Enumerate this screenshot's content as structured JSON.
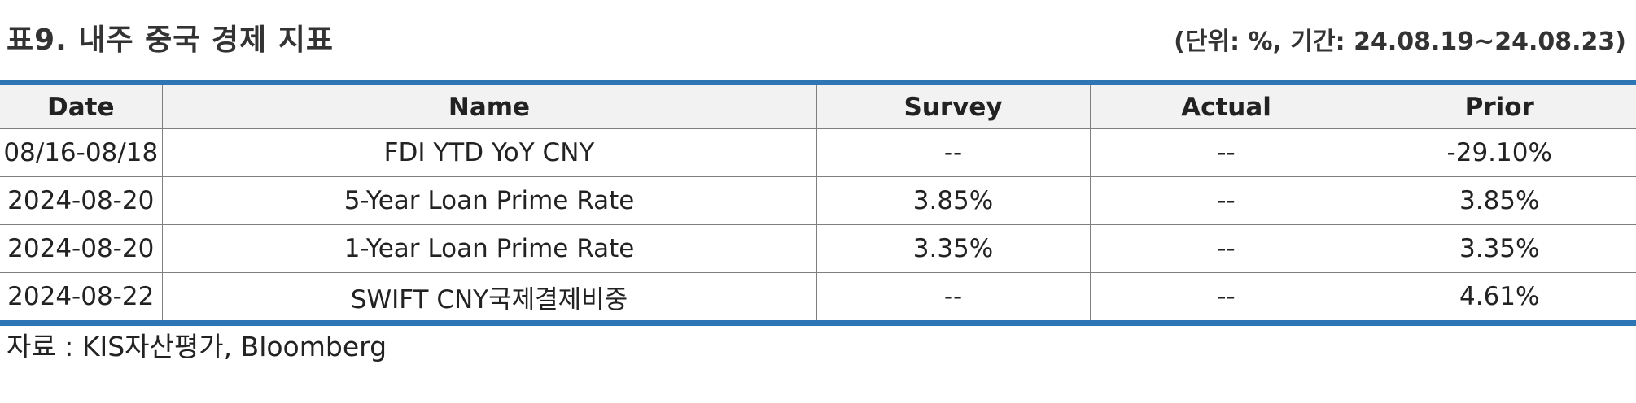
{
  "title": "표9. 내주 중국 경제 지표",
  "unit_note": "(단위: %, 기간: 24.08.19~24.08.23)",
  "table": {
    "headers": [
      "Date",
      "Name",
      "Survey",
      "Actual",
      "Prior"
    ],
    "rows": [
      [
        "08/16-08/18",
        "FDI YTD YoY CNY",
        "--",
        "--",
        "-29.10%"
      ],
      [
        "2024-08-20",
        "5-Year Loan Prime Rate",
        "3.85%",
        "--",
        "3.85%"
      ],
      [
        "2024-08-20",
        "1-Year Loan Prime Rate",
        "3.35%",
        "--",
        "3.35%"
      ],
      [
        "2024-08-22",
        "SWIFT CNY국제결제비중",
        "--",
        "--",
        "4.61%"
      ]
    ]
  },
  "source": "자료 : KIS자산평가, Bloomberg",
  "colors": {
    "rule": "#2e75b6",
    "header_bg": "#f2f2f2",
    "grid": "#7f7f7f"
  }
}
